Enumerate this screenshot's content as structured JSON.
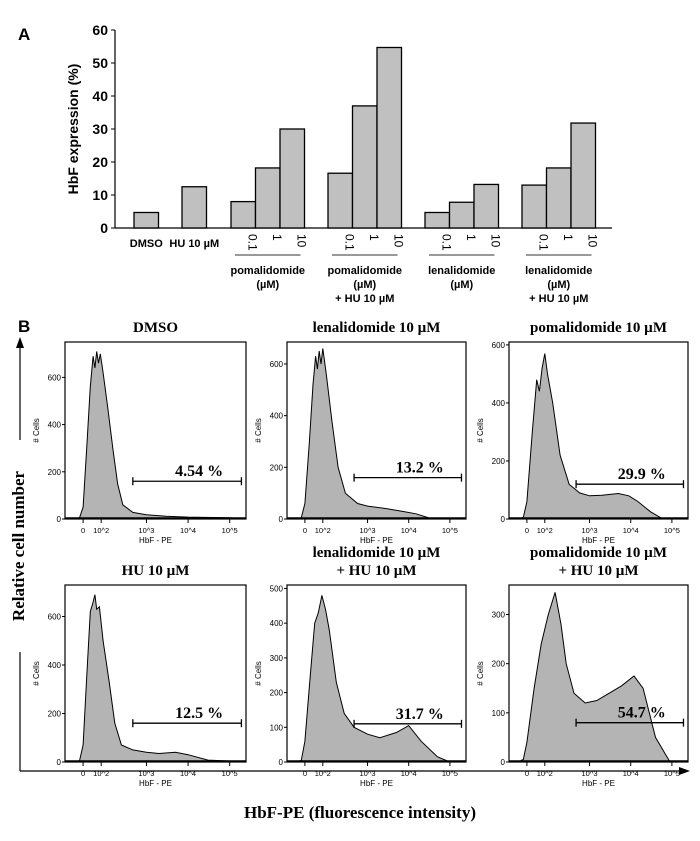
{
  "panel_a": {
    "label": "A",
    "chart_data": {
      "type": "bar",
      "ylabel": "HbF expression (%)",
      "ylim": [
        0,
        60
      ],
      "yticks": [
        0,
        10,
        20,
        30,
        40,
        50,
        60
      ],
      "bar_color": "#c0c0c0",
      "groups": [
        {
          "name": "DMSO",
          "categories": [
            ""
          ],
          "values": [
            4.7
          ]
        },
        {
          "name": "HU 10 µM",
          "categories": [
            ""
          ],
          "values": [
            12.5
          ]
        },
        {
          "name": "pomalidomide (µM)",
          "lines": [
            "pomalidomide",
            "(µM)"
          ],
          "categories": [
            "0.1",
            "1",
            "10"
          ],
          "values": [
            8.0,
            18.2,
            30.0
          ]
        },
        {
          "name": "pomalidomide (µM) + HU 10 µM",
          "lines": [
            "pomalidomide",
            "(µM)",
            "+ HU 10 µM"
          ],
          "categories": [
            "0.1",
            "1",
            "10"
          ],
          "values": [
            16.6,
            37.0,
            54.7
          ]
        },
        {
          "name": "lenalidomide (µM)",
          "lines": [
            "lenalidomide",
            "(µM)"
          ],
          "categories": [
            "0.1",
            "1",
            "10"
          ],
          "values": [
            4.7,
            7.8,
            13.2
          ]
        },
        {
          "name": "lenalidomide (µM) + HU 10 µM",
          "lines": [
            "lenalidomide",
            "(µM)",
            "+ HU 10 µM"
          ],
          "categories": [
            "0.1",
            "1",
            "10"
          ],
          "values": [
            13.0,
            18.2,
            31.8
          ]
        }
      ]
    }
  },
  "panel_b": {
    "label": "B",
    "y_axis_title": "Relative cell number",
    "x_axis_title": "HbF-PE (fluorescence intensity)",
    "fill_color": "#b4b4b4",
    "chart_data": [
      {
        "type": "area",
        "title": [
          "DMSO"
        ],
        "ylabel": "# Cells",
        "xlabel": "HbF - PE",
        "xscale": "biexponential",
        "xticks": [
          "0",
          "10^2",
          "10^3",
          "10^4",
          "10^5"
        ],
        "ylim": [
          0,
          750
        ],
        "yticks": [
          0,
          200,
          400,
          600
        ],
        "gate": {
          "from": 500,
          "to": 200000,
          "percent": "4.54 %",
          "level": 160
        },
        "points": [
          [
            -150,
            0
          ],
          [
            -60,
            5
          ],
          [
            0,
            50
          ],
          [
            20,
            300
          ],
          [
            40,
            560
          ],
          [
            55,
            690
          ],
          [
            65,
            640
          ],
          [
            75,
            710
          ],
          [
            85,
            660
          ],
          [
            95,
            700
          ],
          [
            110,
            620
          ],
          [
            140,
            470
          ],
          [
            180,
            300
          ],
          [
            230,
            150
          ],
          [
            300,
            60
          ],
          [
            500,
            28
          ],
          [
            1000,
            18
          ],
          [
            3000,
            12
          ],
          [
            10000,
            8
          ],
          [
            100000,
            5
          ],
          [
            200000,
            0
          ]
        ]
      },
      {
        "type": "area",
        "title": [
          "lenalidomide 10 µM"
        ],
        "ylabel": "# Cells",
        "xlabel": "HbF - PE",
        "xscale": "biexponential",
        "xticks": [
          "0",
          "10^2",
          "10^3",
          "10^4",
          "10^5"
        ],
        "ylim": [
          0,
          685
        ],
        "yticks": [
          0,
          200,
          400,
          600
        ],
        "gate": {
          "from": 500,
          "to": 200000,
          "percent": "13.2 %",
          "level": 160
        },
        "points": [
          [
            -150,
            0
          ],
          [
            -60,
            5
          ],
          [
            0,
            60
          ],
          [
            25,
            300
          ],
          [
            45,
            520
          ],
          [
            60,
            630
          ],
          [
            70,
            580
          ],
          [
            80,
            650
          ],
          [
            90,
            600
          ],
          [
            100,
            660
          ],
          [
            120,
            560
          ],
          [
            160,
            380
          ],
          [
            220,
            200
          ],
          [
            320,
            100
          ],
          [
            600,
            60
          ],
          [
            1000,
            50
          ],
          [
            3000,
            40
          ],
          [
            8000,
            28
          ],
          [
            15000,
            20
          ],
          [
            30000,
            5
          ],
          [
            50000,
            0
          ]
        ]
      },
      {
        "type": "area",
        "title": [
          "pomalidomide 10 µM"
        ],
        "ylabel": "# Cells",
        "xlabel": "HbF - PE",
        "xscale": "biexponential",
        "xticks": [
          "0",
          "10^2",
          "10^3",
          "10^4",
          "10^5"
        ],
        "ylim": [
          0,
          610
        ],
        "yticks": [
          0,
          200,
          400,
          600
        ],
        "gate": {
          "from": 500,
          "to": 200000,
          "percent": "29.9 %",
          "level": 120
        },
        "points": [
          [
            -150,
            0
          ],
          [
            -60,
            5
          ],
          [
            0,
            60
          ],
          [
            30,
            300
          ],
          [
            55,
            480
          ],
          [
            70,
            440
          ],
          [
            85,
            520
          ],
          [
            100,
            570
          ],
          [
            115,
            500
          ],
          [
            150,
            400
          ],
          [
            220,
            220
          ],
          [
            350,
            120
          ],
          [
            600,
            90
          ],
          [
            1000,
            80
          ],
          [
            2000,
            82
          ],
          [
            5000,
            88
          ],
          [
            9000,
            80
          ],
          [
            15000,
            60
          ],
          [
            30000,
            25
          ],
          [
            60000,
            0
          ]
        ]
      },
      {
        "type": "area",
        "title": [
          "HU 10 µM"
        ],
        "ylabel": "# Cells",
        "xlabel": "HbF - PE",
        "xscale": "biexponential",
        "xticks": [
          "0",
          "10^2",
          "10^3",
          "10^4",
          "10^5"
        ],
        "ylim": [
          0,
          730
        ],
        "yticks": [
          0,
          200,
          400,
          600
        ],
        "gate": {
          "from": 500,
          "to": 200000,
          "percent": "12.5 %",
          "level": 160
        },
        "points": [
          [
            -150,
            0
          ],
          [
            -60,
            5
          ],
          [
            0,
            70
          ],
          [
            20,
            350
          ],
          [
            40,
            620
          ],
          [
            55,
            660
          ],
          [
            65,
            690
          ],
          [
            75,
            630
          ],
          [
            90,
            640
          ],
          [
            110,
            500
          ],
          [
            150,
            330
          ],
          [
            200,
            160
          ],
          [
            280,
            70
          ],
          [
            500,
            50
          ],
          [
            1000,
            40
          ],
          [
            2000,
            35
          ],
          [
            5000,
            40
          ],
          [
            10000,
            30
          ],
          [
            30000,
            8
          ],
          [
            100000,
            4
          ],
          [
            200000,
            0
          ]
        ]
      },
      {
        "type": "area",
        "title": [
          "lenalidomide 10 µM",
          "+ HU 10 µM"
        ],
        "ylabel": "# Cells",
        "xlabel": "HbF - PE",
        "xscale": "biexponential",
        "xticks": [
          "0",
          "10^2",
          "10^3",
          "10^4",
          "10^5"
        ],
        "ylim": [
          0,
          510
        ],
        "yticks": [
          0,
          100,
          200,
          300,
          400,
          500
        ],
        "gate": {
          "from": 500,
          "to": 200000,
          "percent": "31.7 %",
          "level": 110
        },
        "points": [
          [
            -150,
            0
          ],
          [
            -60,
            5
          ],
          [
            0,
            60
          ],
          [
            30,
            250
          ],
          [
            55,
            400
          ],
          [
            75,
            430
          ],
          [
            95,
            480
          ],
          [
            115,
            440
          ],
          [
            140,
            380
          ],
          [
            200,
            230
          ],
          [
            300,
            140
          ],
          [
            500,
            100
          ],
          [
            1000,
            80
          ],
          [
            2000,
            70
          ],
          [
            5000,
            85
          ],
          [
            10000,
            105
          ],
          [
            20000,
            60
          ],
          [
            50000,
            15
          ],
          [
            100000,
            0
          ]
        ]
      },
      {
        "type": "area",
        "title": [
          "pomalidomide 10 µM",
          "+ HU 10 µM"
        ],
        "ylabel": "# Cells",
        "xlabel": "HbF - PE",
        "xscale": "biexponential",
        "xticks": [
          "0",
          "10^2",
          "10^3",
          "10^4",
          "10^5"
        ],
        "ylim": [
          0,
          360
        ],
        "yticks": [
          0,
          100,
          200,
          300
        ],
        "gate": {
          "from": 500,
          "to": 200000,
          "percent": "54.7 %",
          "level": 80
        },
        "points": [
          [
            -150,
            0
          ],
          [
            -60,
            5
          ],
          [
            0,
            40
          ],
          [
            40,
            150
          ],
          [
            80,
            240
          ],
          [
            120,
            300
          ],
          [
            170,
            345
          ],
          [
            230,
            280
          ],
          [
            300,
            200
          ],
          [
            450,
            140
          ],
          [
            800,
            120
          ],
          [
            1500,
            125
          ],
          [
            3000,
            140
          ],
          [
            6000,
            155
          ],
          [
            12000,
            175
          ],
          [
            20000,
            150
          ],
          [
            40000,
            50
          ],
          [
            90000,
            0
          ]
        ]
      }
    ]
  }
}
